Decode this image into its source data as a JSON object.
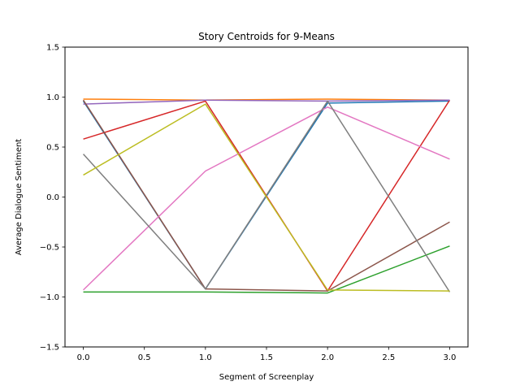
{
  "chart_data": {
    "type": "line",
    "title": "Story Centroids for 9-Means",
    "xlabel": "Segment of Screenplay",
    "ylabel": "Average Dialogue Sentiment",
    "xlim": [
      -0.15,
      3.15
    ],
    "ylim": [
      -1.5,
      1.5
    ],
    "grid": false,
    "x": [
      0,
      1,
      2,
      3
    ],
    "xticks": [
      0.0,
      0.5,
      1.0,
      1.5,
      2.0,
      2.5,
      3.0
    ],
    "xtick_labels": [
      "0.0",
      "0.5",
      "1.0",
      "1.5",
      "2.0",
      "2.5",
      "3.0"
    ],
    "yticks": [
      -1.5,
      -1.0,
      -0.5,
      0.0,
      0.5,
      1.0,
      1.5
    ],
    "ytick_labels": [
      "−1.5",
      "−1.0",
      "−0.5",
      "0.0",
      "0.5",
      "1.0",
      "1.5"
    ],
    "series": [
      {
        "color": "#1f77b4",
        "values": [
          0.96,
          -0.92,
          0.94,
          0.96
        ]
      },
      {
        "color": "#ff7f0e",
        "values": [
          0.98,
          0.97,
          0.98,
          0.97
        ]
      },
      {
        "color": "#2ca02c",
        "values": [
          -0.95,
          -0.95,
          -0.96,
          -0.49
        ]
      },
      {
        "color": "#d62728",
        "values": [
          0.58,
          0.96,
          -0.94,
          0.97
        ]
      },
      {
        "color": "#9467bd",
        "values": [
          0.93,
          0.97,
          0.96,
          0.97
        ]
      },
      {
        "color": "#8c564b",
        "values": [
          0.97,
          -0.92,
          -0.94,
          -0.25
        ]
      },
      {
        "color": "#e377c2",
        "values": [
          -0.93,
          0.26,
          0.9,
          0.38
        ]
      },
      {
        "color": "#7f7f7f",
        "values": [
          0.43,
          -0.92,
          0.96,
          -0.95
        ]
      },
      {
        "color": "#bcbd22",
        "values": [
          0.22,
          0.93,
          -0.93,
          -0.94
        ]
      }
    ]
  }
}
